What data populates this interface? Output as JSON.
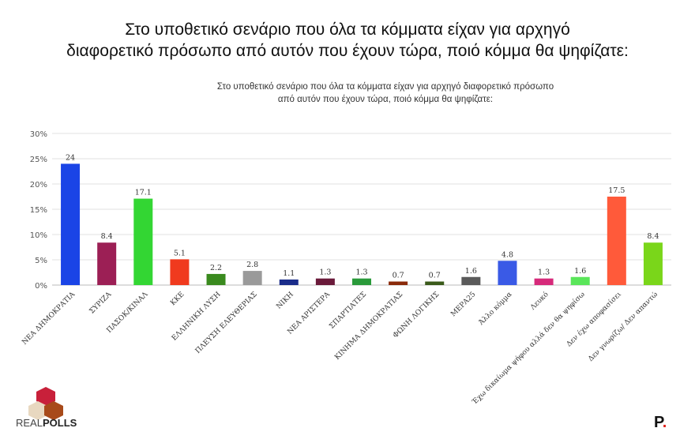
{
  "title_lines": [
    "Στο υποθετικό σενάριο που όλα τα κόμματα είχαν για αρχηγό",
    "διαφορετικό πρόσωπο από αυτόν που έχουν τώρα, ποιό κόμμα θα ψηφίζατε:"
  ],
  "logos": {
    "left": "REALPOLLS",
    "right": "P."
  },
  "chart_data": {
    "type": "bar",
    "title": "Στο υποθετικό σενάριο που όλα τα κόμματα είχαν για αρχηγό διαφορετικό πρόσωπο από αυτόν που έχουν τώρα, ποιό κόμμα θα ψηφίζατε:",
    "title_lines": [
      "Στο υποθετικό σενάριο που όλα τα κόμματα είχαν για αρχηγό διαφορετικό πρόσωπο",
      "από αυτόν που έχουν τώρα, ποιό κόμμα θα ψηφίζατε:"
    ],
    "categories": [
      "ΝΕΑ ΔΗΜΟΚΡΑΤΙΑ",
      "ΣΥΡΙΖΑ",
      "ΠΑΣΟΚ/ΚΙΝΑΛ",
      "ΚΚΕ",
      "ΕΛΛΗΝΙΚΗ ΛΥΣΗ",
      "ΠΛΕΥΣΗ ΕΛΕΥΘΕΡΙΑΣ",
      "ΝΙΚΗ",
      "ΝΕΑ ΑΡΙΣΤΕΡΑ",
      "ΣΠΑΡΤΙΑΤΕΣ",
      "ΚΙΝΗΜΑ ΔΗΜΟΚΡΑΤΙΑΣ",
      "ΦΩΝΗ ΛΟΓΙΚΗΣ",
      "ΜΕΡΑ25",
      "Άλλο κόμμα",
      "Λευκό",
      "Έχω δικαίωμα ψήφου αλλά δεν θα ψηφίσω",
      "Δεν έχω αποφασίσει",
      "Δεν γνωρίζω/ Δεν απαντώ"
    ],
    "values": [
      24,
      8.4,
      17.1,
      5.1,
      2.2,
      2.8,
      1.1,
      1.3,
      1.3,
      0.7,
      0.7,
      1.6,
      4.8,
      1.3,
      1.6,
      17.5,
      8.4
    ],
    "value_labels": [
      "24",
      "8.4",
      "17.1",
      "5.1",
      "2.2",
      "2.8",
      "1.1",
      "1.3",
      "1.3",
      "0.7",
      "0.7",
      "1.6",
      "4.8",
      "1.3",
      "1.6",
      "17.5",
      "8.4"
    ],
    "colors": [
      "#1a44e6",
      "#9c1f55",
      "#33d633",
      "#f03a1e",
      "#3a8a1e",
      "#9a9a9a",
      "#1a2c8a",
      "#6a1a3a",
      "#2a9a3a",
      "#8a2a0a",
      "#3a5a1a",
      "#5a5a5a",
      "#3a5ae6",
      "#d62a7a",
      "#5ae65a",
      "#ff5a3a",
      "#7ad61a"
    ],
    "ylim": [
      0,
      30
    ],
    "yticks": [
      "0%",
      "5%",
      "10%",
      "15%",
      "20%",
      "25%",
      "30%"
    ],
    "grid": true
  }
}
